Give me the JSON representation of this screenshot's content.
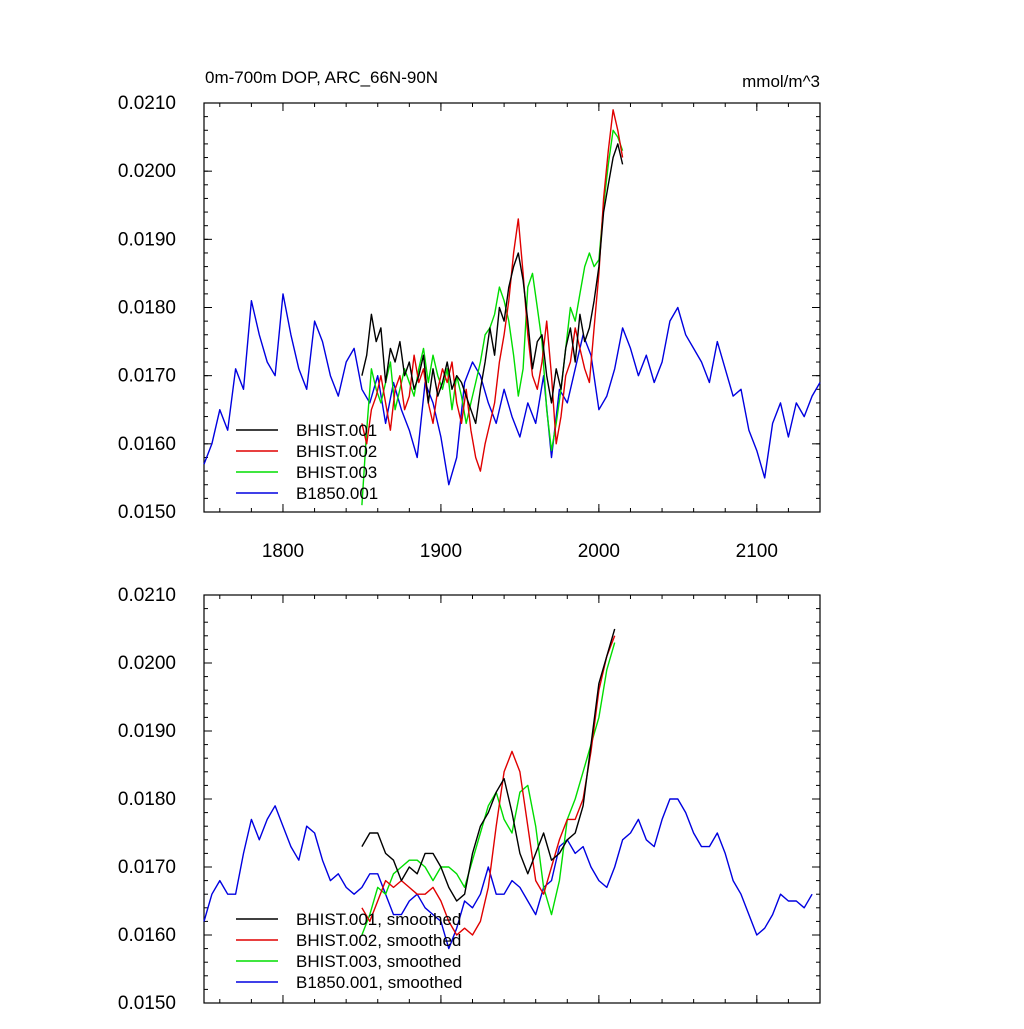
{
  "colors": {
    "BHIST.001": "#000000",
    "BHIST.002": "#e00000",
    "BHIST.003": "#00dd00",
    "B1850.001": "#0000e0"
  },
  "chart_data": [
    {
      "type": "line",
      "title": "0m-700m DOP, ARC_66N-90N",
      "units": "mmol/m^3",
      "xlabel": "",
      "ylabel": "",
      "xlim": [
        1750,
        2140
      ],
      "ylim": [
        0.015,
        0.021
      ],
      "xticks": [
        1800,
        1900,
        2000,
        2100
      ],
      "xticklabels": [
        "1800",
        "1900",
        "2000",
        "2100"
      ],
      "yticks": [
        0.015,
        0.016,
        0.017,
        0.018,
        0.019,
        0.02,
        0.021
      ],
      "yticklabels": [
        "0.0150",
        "0.0160",
        "0.0170",
        "0.0180",
        "0.0190",
        "0.0200",
        "0.0210"
      ],
      "grid": false,
      "legend_position": "bottom-left",
      "series": [
        {
          "name": "BHIST.001",
          "color_key": "BHIST.001",
          "x": [
            1850,
            1853,
            1856,
            1859,
            1862,
            1865,
            1868,
            1871,
            1874,
            1877,
            1880,
            1883,
            1886,
            1889,
            1892,
            1895,
            1898,
            1901,
            1904,
            1907,
            1910,
            1913,
            1916,
            1919,
            1922,
            1925,
            1928,
            1931,
            1934,
            1937,
            1940,
            1943,
            1946,
            1949,
            1952,
            1955,
            1958,
            1961,
            1964,
            1967,
            1970,
            1973,
            1976,
            1979,
            1982,
            1985,
            1988,
            1991,
            1994,
            1997,
            2000,
            2003,
            2006,
            2009,
            2012,
            2015
          ],
          "y": [
            0.017,
            0.0173,
            0.0179,
            0.0175,
            0.0177,
            0.0169,
            0.0174,
            0.0172,
            0.0175,
            0.017,
            0.0172,
            0.0168,
            0.017,
            0.0173,
            0.0166,
            0.0171,
            0.0167,
            0.0169,
            0.0172,
            0.0168,
            0.017,
            0.0169,
            0.0167,
            0.0165,
            0.0163,
            0.0168,
            0.0172,
            0.0177,
            0.0173,
            0.018,
            0.0178,
            0.0183,
            0.0186,
            0.0188,
            0.0184,
            0.0178,
            0.0171,
            0.0175,
            0.0176,
            0.017,
            0.0166,
            0.0171,
            0.0168,
            0.0174,
            0.0177,
            0.0172,
            0.0179,
            0.0175,
            0.0177,
            0.0181,
            0.0186,
            0.0194,
            0.0198,
            0.0202,
            0.0204,
            0.0201
          ]
        },
        {
          "name": "BHIST.002",
          "color_key": "BHIST.002",
          "x": [
            1850,
            1853,
            1856,
            1859,
            1862,
            1865,
            1868,
            1871,
            1874,
            1877,
            1880,
            1883,
            1886,
            1889,
            1892,
            1895,
            1898,
            1901,
            1904,
            1907,
            1910,
            1913,
            1916,
            1919,
            1922,
            1925,
            1928,
            1931,
            1934,
            1937,
            1940,
            1943,
            1946,
            1949,
            1952,
            1955,
            1958,
            1961,
            1964,
            1967,
            1970,
            1973,
            1976,
            1979,
            1982,
            1985,
            1988,
            1991,
            1994,
            1997,
            2000,
            2003,
            2006,
            2009,
            2012,
            2015
          ],
          "y": [
            0.0163,
            0.016,
            0.0165,
            0.0167,
            0.017,
            0.0166,
            0.0162,
            0.0168,
            0.017,
            0.0165,
            0.0167,
            0.0173,
            0.0169,
            0.0171,
            0.0166,
            0.0163,
            0.0168,
            0.0171,
            0.0169,
            0.0172,
            0.0166,
            0.0163,
            0.0168,
            0.0162,
            0.0158,
            0.0156,
            0.016,
            0.0163,
            0.0166,
            0.0172,
            0.0176,
            0.0181,
            0.0188,
            0.0193,
            0.0185,
            0.0176,
            0.017,
            0.0168,
            0.0172,
            0.0178,
            0.017,
            0.016,
            0.0164,
            0.017,
            0.0172,
            0.0177,
            0.0174,
            0.0171,
            0.0169,
            0.0177,
            0.0185,
            0.0196,
            0.0203,
            0.0209,
            0.0206,
            0.0202
          ]
        },
        {
          "name": "BHIST.003",
          "color_key": "BHIST.003",
          "x": [
            1850,
            1853,
            1856,
            1859,
            1862,
            1865,
            1868,
            1871,
            1874,
            1877,
            1880,
            1883,
            1886,
            1889,
            1892,
            1895,
            1898,
            1901,
            1904,
            1907,
            1910,
            1913,
            1916,
            1919,
            1922,
            1925,
            1928,
            1931,
            1934,
            1937,
            1940,
            1943,
            1946,
            1949,
            1952,
            1955,
            1958,
            1961,
            1964,
            1967,
            1970,
            1973,
            1976,
            1979,
            1982,
            1985,
            1988,
            1991,
            1994,
            1997,
            2000,
            2003,
            2006,
            2009,
            2012,
            2015
          ],
          "y": [
            0.0151,
            0.0162,
            0.0171,
            0.0168,
            0.0166,
            0.0169,
            0.0172,
            0.0165,
            0.0168,
            0.0171,
            0.0169,
            0.0167,
            0.0171,
            0.0174,
            0.0169,
            0.0173,
            0.017,
            0.0168,
            0.0171,
            0.0165,
            0.017,
            0.0167,
            0.0163,
            0.0166,
            0.0169,
            0.0172,
            0.0176,
            0.0177,
            0.0179,
            0.0183,
            0.0181,
            0.0178,
            0.0173,
            0.0167,
            0.0171,
            0.0183,
            0.0185,
            0.018,
            0.0175,
            0.0165,
            0.0159,
            0.0163,
            0.0168,
            0.0174,
            0.018,
            0.0178,
            0.0182,
            0.0186,
            0.0188,
            0.0186,
            0.0187,
            0.0195,
            0.0201,
            0.0206,
            0.0205,
            0.0203
          ]
        },
        {
          "name": "B1850.001",
          "color_key": "B1850.001",
          "x": [
            1750,
            1755,
            1760,
            1765,
            1770,
            1775,
            1780,
            1785,
            1790,
            1795,
            1800,
            1805,
            1810,
            1815,
            1820,
            1825,
            1830,
            1835,
            1840,
            1845,
            1850,
            1855,
            1860,
            1865,
            1870,
            1875,
            1880,
            1885,
            1890,
            1895,
            1900,
            1905,
            1910,
            1915,
            1920,
            1925,
            1930,
            1935,
            1940,
            1945,
            1950,
            1955,
            1960,
            1965,
            1970,
            1975,
            1980,
            1985,
            1990,
            1995,
            2000,
            2005,
            2010,
            2015,
            2020,
            2025,
            2030,
            2035,
            2040,
            2045,
            2050,
            2055,
            2060,
            2065,
            2070,
            2075,
            2080,
            2085,
            2090,
            2095,
            2100,
            2105,
            2110,
            2115,
            2120,
            2125,
            2130,
            2135,
            2140
          ],
          "y": [
            0.0157,
            0.016,
            0.0165,
            0.0162,
            0.0171,
            0.0168,
            0.0181,
            0.0176,
            0.0172,
            0.017,
            0.0182,
            0.0176,
            0.0171,
            0.0168,
            0.0178,
            0.0175,
            0.017,
            0.0167,
            0.0172,
            0.0174,
            0.0168,
            0.0166,
            0.017,
            0.0163,
            0.0169,
            0.0165,
            0.0162,
            0.0158,
            0.0169,
            0.0166,
            0.0161,
            0.0154,
            0.0158,
            0.0169,
            0.0172,
            0.017,
            0.0166,
            0.0163,
            0.0168,
            0.0164,
            0.0161,
            0.0166,
            0.0163,
            0.017,
            0.0158,
            0.0168,
            0.0166,
            0.0171,
            0.0176,
            0.0173,
            0.0165,
            0.0167,
            0.0171,
            0.0177,
            0.0174,
            0.017,
            0.0173,
            0.0169,
            0.0172,
            0.0178,
            0.018,
            0.0176,
            0.0174,
            0.0172,
            0.0169,
            0.0175,
            0.0171,
            0.0167,
            0.0168,
            0.0162,
            0.0159,
            0.0155,
            0.0163,
            0.0166,
            0.0161,
            0.0166,
            0.0164,
            0.0167,
            0.0169
          ]
        }
      ]
    },
    {
      "type": "line",
      "title": "",
      "xlabel": "",
      "ylabel": "",
      "xlim": [
        1750,
        2140
      ],
      "ylim": [
        0.015,
        0.021
      ],
      "xticks": [
        1800,
        1900,
        2000,
        2100
      ],
      "yticks": [
        0.015,
        0.016,
        0.017,
        0.018,
        0.019,
        0.02,
        0.021
      ],
      "yticklabels": [
        "0.0150",
        "0.0160",
        "0.0170",
        "0.0180",
        "0.0190",
        "0.0200",
        "0.0210"
      ],
      "grid": false,
      "legend_position": "bottom-left",
      "series": [
        {
          "name": "BHIST.001, smoothed",
          "color_key": "BHIST.001",
          "x": [
            1850,
            1855,
            1860,
            1865,
            1870,
            1875,
            1880,
            1885,
            1890,
            1895,
            1900,
            1905,
            1910,
            1915,
            1920,
            1925,
            1930,
            1935,
            1940,
            1945,
            1950,
            1955,
            1960,
            1965,
            1970,
            1975,
            1980,
            1985,
            1990,
            1995,
            2000,
            2005,
            2010
          ],
          "y": [
            0.0173,
            0.0175,
            0.0175,
            0.0172,
            0.0171,
            0.0168,
            0.017,
            0.0169,
            0.0172,
            0.0172,
            0.017,
            0.0167,
            0.0165,
            0.0166,
            0.0172,
            0.0176,
            0.0178,
            0.0181,
            0.0183,
            0.0178,
            0.0172,
            0.0169,
            0.0172,
            0.0175,
            0.0171,
            0.0172,
            0.0174,
            0.0175,
            0.0179,
            0.0188,
            0.0197,
            0.0201,
            0.0205
          ]
        },
        {
          "name": "BHIST.002, smoothed",
          "color_key": "BHIST.002",
          "x": [
            1850,
            1855,
            1860,
            1865,
            1870,
            1875,
            1880,
            1885,
            1890,
            1895,
            1900,
            1905,
            1910,
            1915,
            1920,
            1925,
            1930,
            1935,
            1940,
            1945,
            1950,
            1955,
            1960,
            1965,
            1970,
            1975,
            1980,
            1985,
            1990,
            1995,
            2000,
            2005,
            2010
          ],
          "y": [
            0.0164,
            0.0162,
            0.0165,
            0.0168,
            0.0167,
            0.0168,
            0.0167,
            0.0166,
            0.0166,
            0.0167,
            0.0165,
            0.0162,
            0.016,
            0.0161,
            0.016,
            0.0162,
            0.0167,
            0.0176,
            0.0184,
            0.0187,
            0.0184,
            0.0176,
            0.0168,
            0.0166,
            0.017,
            0.0174,
            0.0177,
            0.0177,
            0.018,
            0.0187,
            0.0196,
            0.0201,
            0.0204
          ]
        },
        {
          "name": "BHIST.003, smoothed",
          "color_key": "BHIST.003",
          "x": [
            1850,
            1855,
            1860,
            1865,
            1870,
            1875,
            1880,
            1885,
            1890,
            1895,
            1900,
            1905,
            1910,
            1915,
            1920,
            1925,
            1930,
            1935,
            1940,
            1945,
            1950,
            1955,
            1960,
            1965,
            1970,
            1975,
            1980,
            1985,
            1990,
            1995,
            2000,
            2005,
            2010
          ],
          "y": [
            0.016,
            0.0163,
            0.0167,
            0.0166,
            0.0169,
            0.017,
            0.0171,
            0.0171,
            0.017,
            0.0168,
            0.017,
            0.017,
            0.0169,
            0.0167,
            0.0171,
            0.0175,
            0.0179,
            0.0181,
            0.0177,
            0.0175,
            0.0181,
            0.0182,
            0.0176,
            0.0167,
            0.0163,
            0.0168,
            0.0177,
            0.018,
            0.0184,
            0.0188,
            0.0192,
            0.0199,
            0.0203
          ]
        },
        {
          "name": "B1850.001, smoothed",
          "color_key": "B1850.001",
          "x": [
            1750,
            1755,
            1760,
            1765,
            1770,
            1775,
            1780,
            1785,
            1790,
            1795,
            1800,
            1805,
            1810,
            1815,
            1820,
            1825,
            1830,
            1835,
            1840,
            1845,
            1850,
            1855,
            1860,
            1865,
            1870,
            1875,
            1880,
            1885,
            1890,
            1895,
            1900,
            1905,
            1910,
            1915,
            1920,
            1925,
            1930,
            1935,
            1940,
            1945,
            1950,
            1955,
            1960,
            1965,
            1970,
            1975,
            1980,
            1985,
            1990,
            1995,
            2000,
            2005,
            2010,
            2015,
            2020,
            2025,
            2030,
            2035,
            2040,
            2045,
            2050,
            2055,
            2060,
            2065,
            2070,
            2075,
            2080,
            2085,
            2090,
            2095,
            2100,
            2105,
            2110,
            2115,
            2120,
            2125,
            2130,
            2135
          ],
          "y": [
            0.0162,
            0.0166,
            0.0168,
            0.0166,
            0.0166,
            0.0172,
            0.0177,
            0.0174,
            0.0177,
            0.0179,
            0.0176,
            0.0173,
            0.0171,
            0.0176,
            0.0175,
            0.0171,
            0.0168,
            0.0169,
            0.0167,
            0.0166,
            0.0167,
            0.0169,
            0.0169,
            0.0166,
            0.0163,
            0.0163,
            0.0165,
            0.0166,
            0.0164,
            0.0163,
            0.0162,
            0.0158,
            0.0161,
            0.0165,
            0.0164,
            0.0166,
            0.017,
            0.0166,
            0.0166,
            0.0168,
            0.0167,
            0.0165,
            0.0163,
            0.0167,
            0.0168,
            0.0173,
            0.0174,
            0.0172,
            0.0173,
            0.017,
            0.0168,
            0.0167,
            0.017,
            0.0174,
            0.0175,
            0.0177,
            0.0174,
            0.0173,
            0.0177,
            0.018,
            0.018,
            0.0178,
            0.0175,
            0.0173,
            0.0173,
            0.0175,
            0.0172,
            0.0168,
            0.0166,
            0.0163,
            0.016,
            0.0161,
            0.0163,
            0.0166,
            0.0165,
            0.0165,
            0.0164,
            0.0166
          ]
        }
      ]
    }
  ]
}
